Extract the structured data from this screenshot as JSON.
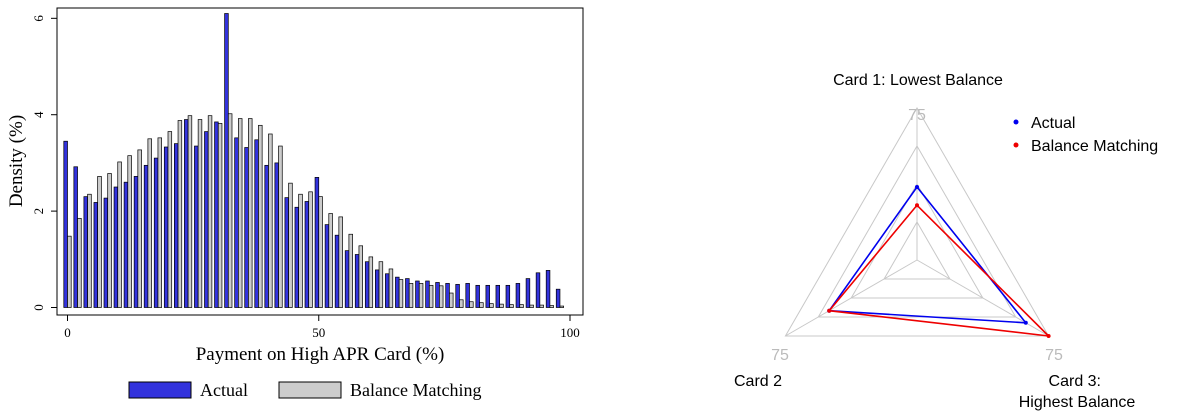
{
  "chart_data": [
    {
      "type": "bar",
      "xlabel": "Payment on High APR Card (%)",
      "ylabel": "Density (%)",
      "xlim": [
        0,
        100
      ],
      "ylim": [
        0,
        6.2
      ],
      "xticks": [
        "0",
        "50",
        "100"
      ],
      "yticks": [
        "0",
        "2",
        "4",
        "6"
      ],
      "legend_position": "bottom",
      "x": [
        0,
        2,
        4,
        6,
        8,
        10,
        12,
        14,
        16,
        18,
        20,
        22,
        24,
        26,
        28,
        30,
        32,
        34,
        36,
        38,
        40,
        42,
        44,
        46,
        48,
        50,
        52,
        54,
        56,
        58,
        60,
        62,
        64,
        66,
        68,
        70,
        72,
        74,
        76,
        78,
        80,
        82,
        84,
        86,
        88,
        90,
        92,
        94,
        96,
        98
      ],
      "series": [
        {
          "name": "Actual",
          "color": "#3333dd",
          "values": [
            3.45,
            2.92,
            2.3,
            2.18,
            2.27,
            2.5,
            2.6,
            2.72,
            2.95,
            3.1,
            3.33,
            3.4,
            3.9,
            3.35,
            3.65,
            3.85,
            6.1,
            3.52,
            3.32,
            3.48,
            2.95,
            3.0,
            2.28,
            2.08,
            2.2,
            2.7,
            1.72,
            1.5,
            1.18,
            1.1,
            0.95,
            0.78,
            0.7,
            0.63,
            0.6,
            0.55,
            0.55,
            0.52,
            0.5,
            0.48,
            0.5,
            0.46,
            0.46,
            0.46,
            0.46,
            0.5,
            0.6,
            0.72,
            0.77,
            0.38
          ]
        },
        {
          "name": "Balance Matching",
          "color": "#cccccc",
          "values": [
            1.48,
            1.85,
            2.35,
            2.72,
            2.78,
            3.02,
            3.15,
            3.27,
            3.5,
            3.52,
            3.65,
            3.88,
            3.98,
            3.9,
            3.98,
            3.82,
            4.02,
            3.92,
            3.92,
            3.78,
            3.6,
            3.35,
            2.58,
            2.35,
            2.4,
            2.3,
            1.95,
            1.88,
            1.52,
            1.28,
            1.05,
            0.95,
            0.8,
            0.58,
            0.5,
            0.5,
            0.46,
            0.45,
            0.3,
            0.16,
            0.12,
            0.1,
            0.08,
            0.07,
            0.06,
            0.06,
            0.05,
            0.05,
            0.04,
            0.03
          ]
        }
      ]
    },
    {
      "type": "radar",
      "axes": [
        "Card 1: Lowest Balance",
        "Card 2",
        "Card 3:\nHighest Balance"
      ],
      "axis_max": 75,
      "ring_label": "75",
      "legend_position": "top-right",
      "series": [
        {
          "name": "Actual",
          "color": "#0000ee",
          "values": [
            36,
            50,
            62
          ]
        },
        {
          "name": "Balance Matching",
          "color": "#ee0000",
          "values": [
            27,
            50,
            75
          ]
        }
      ]
    }
  ]
}
